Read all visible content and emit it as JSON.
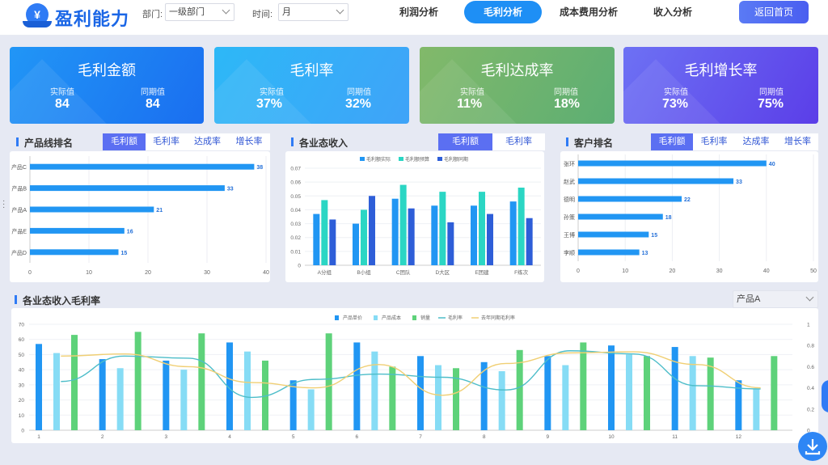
{
  "header": {
    "title": "盈利能力",
    "logo_glyph": "¥",
    "dept_label": "部门:",
    "dept_value": "一级部门",
    "time_label": "时间:",
    "time_value": "月",
    "tabs": [
      {
        "label": "利润分析",
        "active": false
      },
      {
        "label": "毛利分析",
        "active": true
      },
      {
        "label": "成本费用分析",
        "active": false
      },
      {
        "label": "收入分析",
        "active": false
      }
    ],
    "home_label": "返回首页"
  },
  "kpis": [
    {
      "title": "毛利金额",
      "actual_label": "实际值",
      "actual": "84",
      "yoy_label": "同期值",
      "yoy": "84",
      "color_from": "#2196f6",
      "color_to": "#1a6ef0"
    },
    {
      "title": "毛利率",
      "actual_label": "实际值",
      "actual": "37%",
      "yoy_label": "同期值",
      "yoy": "32%",
      "color_from": "#2db8f7",
      "color_to": "#3fa3f8"
    },
    {
      "title": "毛利达成率",
      "actual_label": "实际值",
      "actual": "11%",
      "yoy_label": "同期值",
      "yoy": "18%",
      "color_from": "#82b96a",
      "color_to": "#5cae73"
    },
    {
      "title": "毛利增长率",
      "actual_label": "实际值",
      "actual": "73%",
      "yoy_label": "同期值",
      "yoy": "75%",
      "color_from": "#6d71f4",
      "color_to": "#5b3ee8"
    }
  ],
  "panels": {
    "product": {
      "title": "产品线排名",
      "tabs": [
        "毛利额",
        "毛利率",
        "达成率",
        "增长率"
      ],
      "active": 0
    },
    "business": {
      "title": "各业态收入",
      "tabs": [
        "毛利额",
        "毛利率"
      ],
      "active": 0
    },
    "customer": {
      "title": "客户排名",
      "tabs": [
        "毛利额",
        "毛利率",
        "达成率",
        "增长率"
      ],
      "active": 0
    },
    "margin": {
      "title": "各业态收入毛利率",
      "select_value": "产品A"
    }
  },
  "chart_data": [
    {
      "type": "bar",
      "orientation": "horizontal",
      "categories": [
        "产品C",
        "产品B",
        "产品A",
        "产品E",
        "产品D"
      ],
      "values": [
        38,
        33,
        21,
        16,
        15
      ],
      "xlim": [
        0,
        40
      ],
      "xticks": [
        0,
        10,
        20,
        30,
        40
      ],
      "color": "#2196f3"
    },
    {
      "type": "bar",
      "categories": [
        "A分组",
        "B小组",
        "C团队",
        "D大区",
        "E团建",
        "F练次"
      ],
      "series": [
        {
          "name": "毛利额实际",
          "values": [
            0.037,
            0.03,
            0.048,
            0.043,
            0.043,
            0.046
          ],
          "color": "#2196f3"
        },
        {
          "name": "毛利额预算",
          "values": [
            0.047,
            0.04,
            0.058,
            0.053,
            0.053,
            0.056
          ],
          "color": "#2bd6c4"
        },
        {
          "name": "毛利额同期",
          "values": [
            0.033,
            0.05,
            0.041,
            0.031,
            0.037,
            0.034
          ],
          "color": "#2e5ed8"
        }
      ],
      "ylim": [
        0,
        0.07
      ],
      "yticks": [
        0,
        0.01,
        0.02,
        0.03,
        0.04,
        0.05,
        0.06,
        0.07
      ]
    },
    {
      "type": "bar",
      "orientation": "horizontal",
      "categories": [
        "张环",
        "赵武",
        "德明",
        "孙策",
        "王博",
        "李顺"
      ],
      "values": [
        40,
        33,
        22,
        18,
        15,
        13
      ],
      "xlim": [
        0,
        50
      ],
      "xticks": [
        0,
        10,
        20,
        30,
        40,
        50
      ],
      "color": "#2196f3"
    },
    {
      "type": "bar",
      "categories": [
        "1",
        "2",
        "3",
        "4",
        "5",
        "6",
        "7",
        "8",
        "9",
        "10",
        "11",
        "12"
      ],
      "series": [
        {
          "name": "产品单价",
          "type": "bar",
          "values": [
            57,
            47,
            46,
            58,
            33,
            58,
            49,
            45,
            49,
            56,
            55,
            33
          ],
          "color": "#2196f3"
        },
        {
          "name": "产品成本",
          "type": "bar",
          "values": [
            51,
            41,
            40,
            52,
            27,
            52,
            43,
            39,
            43,
            50,
            49,
            27
          ],
          "color": "#86dcf5"
        },
        {
          "name": "销量",
          "type": "bar",
          "values": [
            63,
            65,
            64,
            46,
            64,
            42,
            41,
            53,
            58,
            49,
            48,
            49
          ],
          "color": "#5ed27a"
        },
        {
          "name": "毛利率",
          "type": "line",
          "axis": "right",
          "values": [
            0.46,
            0.7,
            0.68,
            0.31,
            0.48,
            0.53,
            0.5,
            0.38,
            0.75,
            0.72,
            0.42,
            0.39
          ],
          "color": "#4dbdc9"
        },
        {
          "name": "去年同期毛利率",
          "type": "line",
          "axis": "right",
          "values": [
            0.7,
            0.72,
            0.6,
            0.45,
            0.4,
            0.62,
            0.33,
            0.63,
            0.73,
            0.74,
            0.62,
            0.4
          ],
          "color": "#f0cf74"
        }
      ],
      "ylim": [
        0,
        70
      ],
      "yticks": [
        0,
        10,
        20,
        30,
        40,
        50,
        60,
        70
      ],
      "y2lim": [
        0,
        1
      ],
      "y2ticks": [
        0,
        0.2,
        0.4,
        0.6,
        0.8,
        1
      ]
    }
  ]
}
